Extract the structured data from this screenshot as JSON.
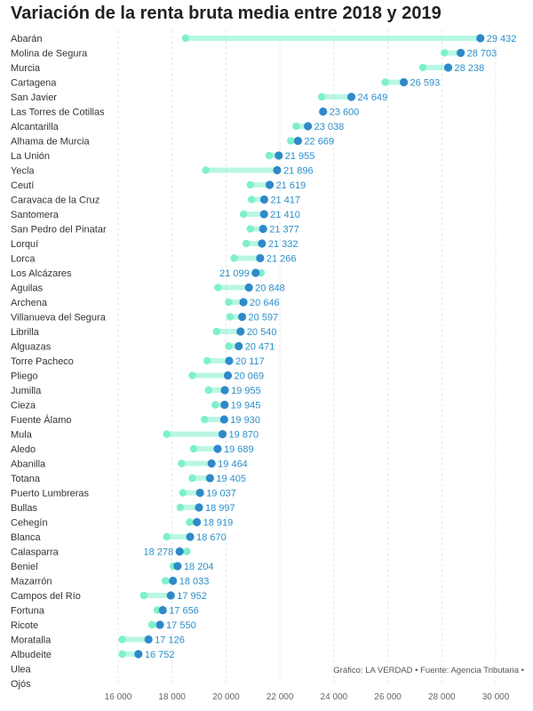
{
  "title": "Variación de la renta bruta media entre 2018 y 2019",
  "source": "Gráfico: LA VERDAD • Fuente: Agencia Tributaria •",
  "colors": {
    "y2018": "#7ef0cc",
    "y2019": "#2e8ac9",
    "label": "#2a8fc9",
    "grid": "#e6e6e6"
  },
  "chart_data": {
    "type": "dumbbell",
    "title": "Variación de la renta bruta media entre 2018 y 2019",
    "xlabel": "",
    "ylabel": "",
    "xlim": [
      16000,
      30000
    ],
    "xticks": [
      16000,
      18000,
      20000,
      22000,
      24000,
      26000,
      28000,
      30000
    ],
    "xtick_labels": [
      "16 000",
      "18 000",
      "20 000",
      "22 000",
      "24 000",
      "26 000",
      "28 000",
      "30 000"
    ],
    "grid": true,
    "series": [
      {
        "key": "y2018"
      },
      {
        "key": "y2019"
      }
    ],
    "rows": [
      {
        "name": "Abarán",
        "y2018": 18500,
        "y2019": 29432,
        "label": "29 432"
      },
      {
        "name": "Molina de Segura",
        "y2018": 28100,
        "y2019": 28703,
        "label": "28 703"
      },
      {
        "name": "Murcia",
        "y2018": 27300,
        "y2019": 28238,
        "label": "28 238"
      },
      {
        "name": "Cartagena",
        "y2018": 25900,
        "y2019": 26593,
        "label": "26 593"
      },
      {
        "name": "San Javier",
        "y2018": 23550,
        "y2019": 24649,
        "label": "24 649"
      },
      {
        "name": "Las Torres de Cotillas",
        "y2018": 23600,
        "y2019": 23600,
        "label": "23 600"
      },
      {
        "name": "Alcantarilla",
        "y2018": 22600,
        "y2019": 23038,
        "label": "23 038"
      },
      {
        "name": "Alhama de Murcia",
        "y2018": 22400,
        "y2019": 22669,
        "label": "22 669"
      },
      {
        "name": "La Unión",
        "y2018": 21600,
        "y2019": 21955,
        "label": "21 955"
      },
      {
        "name": "Yecla",
        "y2018": 19250,
        "y2019": 21896,
        "label": "21 896"
      },
      {
        "name": "Ceutí",
        "y2018": 20900,
        "y2019": 21619,
        "label": "21 619"
      },
      {
        "name": "Caravaca de la Cruz",
        "y2018": 20950,
        "y2019": 21417,
        "label": "21 417"
      },
      {
        "name": "Santomera",
        "y2018": 20650,
        "y2019": 21410,
        "label": "21 410"
      },
      {
        "name": "San Pedro del Pinatar",
        "y2018": 20900,
        "y2019": 21377,
        "label": "21 377"
      },
      {
        "name": "Lorquí",
        "y2018": 20750,
        "y2019": 21332,
        "label": "21 332"
      },
      {
        "name": "Lorca",
        "y2018": 20300,
        "y2019": 21266,
        "label": "21 266"
      },
      {
        "name": "Los Alcázares",
        "y2018": 21300,
        "y2019": 21099,
        "label": "21 099"
      },
      {
        "name": "Aguilas",
        "y2018": 19700,
        "y2019": 20848,
        "label": "20 848"
      },
      {
        "name": "Archena",
        "y2018": 20100,
        "y2019": 20646,
        "label": "20 646"
      },
      {
        "name": "Villanueva del Segura",
        "y2018": 20150,
        "y2019": 20597,
        "label": "20 597"
      },
      {
        "name": "Librilla",
        "y2018": 19650,
        "y2019": 20540,
        "label": "20 540"
      },
      {
        "name": "Alguazas",
        "y2018": 20100,
        "y2019": 20471,
        "label": "20 471"
      },
      {
        "name": "Torre Pacheco",
        "y2018": 19300,
        "y2019": 20117,
        "label": "20 117"
      },
      {
        "name": "Pliego",
        "y2018": 18750,
        "y2019": 20069,
        "label": "20 069"
      },
      {
        "name": "Jumilla",
        "y2018": 19350,
        "y2019": 19955,
        "label": "19 955"
      },
      {
        "name": "Cieza",
        "y2018": 19600,
        "y2019": 19945,
        "label": "19 945"
      },
      {
        "name": "Fuente Álamo",
        "y2018": 19200,
        "y2019": 19930,
        "label": "19 930"
      },
      {
        "name": "Mula",
        "y2018": 17800,
        "y2019": 19870,
        "label": "19 870"
      },
      {
        "name": "Aledo",
        "y2018": 18800,
        "y2019": 19689,
        "label": "19 689"
      },
      {
        "name": "Abanilla",
        "y2018": 18350,
        "y2019": 19464,
        "label": "19 464"
      },
      {
        "name": "Totana",
        "y2018": 18750,
        "y2019": 19405,
        "label": "19 405"
      },
      {
        "name": "Puerto Lumbreras",
        "y2018": 18400,
        "y2019": 19037,
        "label": "19 037"
      },
      {
        "name": "Bullas",
        "y2018": 18300,
        "y2019": 18997,
        "label": "18 997"
      },
      {
        "name": "Cehegín",
        "y2018": 18650,
        "y2019": 18919,
        "label": "18 919"
      },
      {
        "name": "Blanca",
        "y2018": 17800,
        "y2019": 18670,
        "label": "18 670"
      },
      {
        "name": "Calasparra",
        "y2018": 18550,
        "y2019": 18278,
        "label": "18 278"
      },
      {
        "name": "Beniel",
        "y2018": 18050,
        "y2019": 18204,
        "label": "18 204"
      },
      {
        "name": "Mazarrón",
        "y2018": 17750,
        "y2019": 18033,
        "label": "18 033"
      },
      {
        "name": "Campos del Río",
        "y2018": 16950,
        "y2019": 17952,
        "label": "17 952"
      },
      {
        "name": "Fortuna",
        "y2018": 17450,
        "y2019": 17656,
        "label": "17 656"
      },
      {
        "name": "Ricote",
        "y2018": 17250,
        "y2019": 17550,
        "label": "17 550"
      },
      {
        "name": "Moratalla",
        "y2018": 16150,
        "y2019": 17126,
        "label": "17 126"
      },
      {
        "name": "Albudeite",
        "y2018": 16150,
        "y2019": 16752,
        "label": "16 752"
      },
      {
        "name": "Ulea",
        "y2018": null,
        "y2019": null,
        "label": ""
      },
      {
        "name": "Ojós",
        "y2018": null,
        "y2019": null,
        "label": ""
      }
    ]
  }
}
